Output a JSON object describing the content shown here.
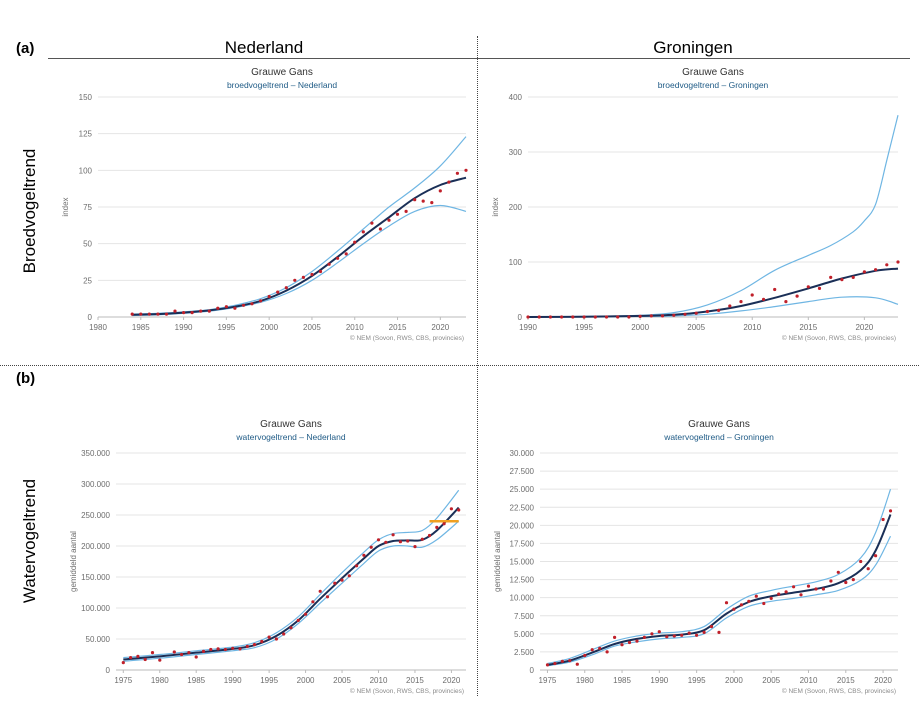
{
  "labels": {
    "a": "(a)",
    "b": "(b)",
    "col_left": "Nederland",
    "col_right": "Groningen",
    "row_top": "Broedvogeltrend",
    "row_bottom": "Watervogeltrend"
  },
  "colors": {
    "trend": "#1a2f57",
    "band": "#6fb6e3",
    "points": "#c0202a",
    "target": "#f0a020",
    "axis_text": "#6d6d6d",
    "subtitle": "#1f5b86"
  },
  "chart_data": [
    {
      "type": "line",
      "title": "Grauwe Gans",
      "subtitle": "broedvogeltrend – Nederland",
      "ylabel": "index",
      "xlabel": "",
      "copyright": "© NEM (Sovon, RWS, CBS, provincies)",
      "xlim": [
        1980,
        2023
      ],
      "ylim": [
        0,
        150
      ],
      "xticks": [
        1980,
        1985,
        1990,
        1995,
        2000,
        2005,
        2010,
        2015,
        2020
      ],
      "xtick_labels": [
        "1980",
        "1985",
        "1990",
        "1995",
        "2000",
        "2005",
        "2010",
        "2015",
        "2020"
      ],
      "yticks": [
        0,
        25,
        50,
        75,
        100,
        125,
        150
      ],
      "ytick_labels": [
        "0",
        "25",
        "50",
        "75",
        "100",
        "125",
        "150"
      ],
      "grid": true,
      "series": [
        {
          "role": "trend",
          "x": [
            1984,
            1987,
            1990,
            1993,
            1996,
            1999,
            2002,
            2005,
            2008,
            2011,
            2014,
            2017,
            2020,
            2023
          ],
          "y": [
            1.5,
            2,
            3,
            4.5,
            7,
            11,
            18,
            28,
            41,
            55,
            68,
            81,
            90,
            95
          ]
        },
        {
          "role": "upper",
          "x": [
            1984,
            1987,
            1990,
            1993,
            1996,
            1999,
            2002,
            2005,
            2008,
            2011,
            2014,
            2017,
            2020,
            2023
          ],
          "y": [
            2,
            2.5,
            3.5,
            5,
            8,
            12.5,
            20,
            31,
            45,
            60,
            75,
            88,
            103,
            123
          ]
        },
        {
          "role": "lower",
          "x": [
            1984,
            1987,
            1990,
            1993,
            1996,
            1999,
            2002,
            2005,
            2008,
            2011,
            2014,
            2017,
            2020,
            2023
          ],
          "y": [
            1,
            1.5,
            2.5,
            4,
            6.5,
            10,
            16,
            25,
            37,
            50,
            62,
            72,
            76,
            72
          ]
        },
        {
          "role": "observed",
          "x": [
            1984,
            1985,
            1986,
            1987,
            1988,
            1989,
            1990,
            1991,
            1992,
            1993,
            1994,
            1995,
            1996,
            1997,
            1998,
            1999,
            2000,
            2001,
            2002,
            2003,
            2004,
            2005,
            2006,
            2007,
            2008,
            2009,
            2010,
            2011,
            2012,
            2013,
            2014,
            2015,
            2016,
            2017,
            2018,
            2019,
            2020,
            2021,
            2022,
            2023
          ],
          "y": [
            2,
            2,
            2,
            2,
            2,
            4,
            3,
            3,
            4,
            4,
            6,
            7,
            6,
            8,
            9,
            11,
            14,
            17,
            20,
            25,
            27,
            29,
            31,
            36,
            40,
            43,
            51,
            58,
            64,
            60,
            66,
            70,
            72,
            80,
            79,
            78,
            86,
            92,
            98,
            100
          ]
        }
      ]
    },
    {
      "type": "line",
      "title": "Grauwe Gans",
      "subtitle": "broedvogeltrend – Groningen",
      "ylabel": "index",
      "xlabel": "",
      "copyright": "© NEM (Sovon, RWS, CBS, provincies)",
      "xlim": [
        1990,
        2023
      ],
      "ylim": [
        0,
        400
      ],
      "xticks": [
        1990,
        1995,
        2000,
        2005,
        2010,
        2015,
        2020
      ],
      "xtick_labels": [
        "1990",
        "1995",
        "2000",
        "2005",
        "2010",
        "2015",
        "2020"
      ],
      "yticks": [
        0,
        100,
        200,
        300,
        400
      ],
      "ytick_labels": [
        "0",
        "100",
        "200",
        "300",
        "400"
      ],
      "grid": true,
      "series": [
        {
          "role": "trend",
          "x": [
            1990,
            1995,
            2000,
            2003,
            2006,
            2009,
            2012,
            2015,
            2018,
            2021,
            2023
          ],
          "y": [
            0,
            0.5,
            2,
            4,
            10,
            20,
            35,
            52,
            70,
            84,
            88
          ]
        },
        {
          "role": "upper",
          "x": [
            1990,
            1995,
            2000,
            2003,
            2006,
            2009,
            2012,
            2015,
            2017,
            2019,
            2020,
            2021,
            2022,
            2023
          ],
          "y": [
            0,
            1,
            3,
            8,
            22,
            48,
            85,
            112,
            130,
            155,
            175,
            205,
            285,
            367
          ]
        },
        {
          "role": "lower",
          "x": [
            1990,
            1995,
            2000,
            2003,
            2006,
            2009,
            2012,
            2015,
            2018,
            2021,
            2023
          ],
          "y": [
            0,
            0.3,
            1,
            2,
            5,
            11,
            19,
            28,
            36,
            35,
            23
          ]
        },
        {
          "role": "observed",
          "x": [
            1990,
            1991,
            1992,
            1993,
            1994,
            1995,
            1996,
            1997,
            1998,
            1999,
            2000,
            2001,
            2002,
            2003,
            2004,
            2005,
            2006,
            2007,
            2008,
            2009,
            2010,
            2011,
            2012,
            2013,
            2014,
            2015,
            2016,
            2017,
            2018,
            2019,
            2020,
            2021,
            2022,
            2023
          ],
          "y": [
            0,
            0,
            0,
            0,
            0,
            0,
            0,
            0,
            0,
            0,
            1,
            2,
            2,
            3,
            5,
            7,
            10,
            12,
            20,
            28,
            40,
            32,
            50,
            28,
            38,
            55,
            52,
            72,
            68,
            72,
            82,
            86,
            95,
            100
          ]
        }
      ]
    },
    {
      "type": "line",
      "title": "Grauwe Gans",
      "subtitle": "watervogeltrend – Nederland",
      "ylabel": "gemiddeld aantal",
      "xlabel": "",
      "copyright": "© NEM (Sovon, RWS, CBS, provincies)",
      "xlim": [
        1974,
        2022
      ],
      "ylim": [
        0,
        350000
      ],
      "xticks": [
        1975,
        1980,
        1985,
        1990,
        1995,
        2000,
        2005,
        2010,
        2015,
        2020
      ],
      "xtick_labels": [
        "1975",
        "1980",
        "1985",
        "1990",
        "1995",
        "2000",
        "2005",
        "2010",
        "2015",
        "2020"
      ],
      "yticks": [
        0,
        50000,
        100000,
        150000,
        200000,
        250000,
        300000,
        350000
      ],
      "ytick_labels": [
        "0",
        "50.000",
        "100.000",
        "150.000",
        "200.000",
        "250.000",
        "300.000",
        "350.000"
      ],
      "grid": true,
      "target_line": {
        "x": [
          2017,
          2021
        ],
        "y": 240000
      },
      "series": [
        {
          "role": "trend",
          "x": [
            1975,
            1980,
            1985,
            1990,
            1993,
            1996,
            1999,
            2002,
            2005,
            2008,
            2010,
            2012,
            2014,
            2016,
            2018,
            2021
          ],
          "y": [
            17000,
            22000,
            28000,
            34000,
            40000,
            55000,
            80000,
            115000,
            148000,
            180000,
            200000,
            208000,
            209000,
            210000,
            225000,
            262000
          ]
        },
        {
          "role": "upper",
          "x": [
            1975,
            1980,
            1985,
            1990,
            1993,
            1996,
            1999,
            2002,
            2005,
            2008,
            2010,
            2012,
            2014,
            2016,
            2018,
            2021
          ],
          "y": [
            20000,
            25000,
            31000,
            37000,
            44000,
            60000,
            86000,
            122000,
            157000,
            190000,
            210000,
            220000,
            222000,
            225000,
            245000,
            290000
          ]
        },
        {
          "role": "lower",
          "x": [
            1975,
            1980,
            1985,
            1990,
            1993,
            1996,
            1999,
            2002,
            2005,
            2008,
            2010,
            2012,
            2014,
            2016,
            2018,
            2021
          ],
          "y": [
            14000,
            19000,
            25000,
            31000,
            36000,
            50000,
            75000,
            108000,
            140000,
            172000,
            192000,
            200000,
            200000,
            198000,
            210000,
            240000
          ]
        },
        {
          "role": "observed",
          "x": [
            1975,
            1976,
            1977,
            1978,
            1979,
            1980,
            1982,
            1983,
            1984,
            1985,
            1986,
            1987,
            1988,
            1989,
            1990,
            1991,
            1992,
            1993,
            1994,
            1995,
            1996,
            1997,
            1998,
            1999,
            2000,
            2001,
            2002,
            2003,
            2004,
            2005,
            2006,
            2007,
            2008,
            2009,
            2010,
            2011,
            2012,
            2013,
            2014,
            2015,
            2016,
            2017,
            2018,
            2019,
            2020,
            2021
          ],
          "y": [
            12000,
            20000,
            22000,
            17000,
            28000,
            16000,
            29000,
            25000,
            28000,
            21000,
            30000,
            33000,
            34000,
            33000,
            35000,
            34000,
            38000,
            41000,
            46000,
            53000,
            50000,
            58000,
            68000,
            80000,
            90000,
            110000,
            127000,
            118000,
            140000,
            145000,
            152000,
            168000,
            185000,
            198000,
            210000,
            206000,
            218000,
            207000,
            208000,
            199000,
            211000,
            217000,
            230000,
            236000,
            260000,
            258000
          ]
        }
      ]
    },
    {
      "type": "line",
      "title": "Grauwe Gans",
      "subtitle": "watervogeltrend – Groningen",
      "ylabel": "gemiddeld aantal",
      "xlabel": "",
      "copyright": "© NEM (Sovon, RWS, CBS, provincies)",
      "xlim": [
        1974,
        2022
      ],
      "ylim": [
        0,
        30000
      ],
      "xticks": [
        1975,
        1980,
        1985,
        1990,
        1995,
        2000,
        2005,
        2010,
        2015,
        2020
      ],
      "xtick_labels": [
        "1975",
        "1980",
        "1985",
        "1990",
        "1995",
        "2000",
        "2005",
        "2010",
        "2015",
        "2020"
      ],
      "yticks": [
        0,
        2500,
        5000,
        7500,
        10000,
        12500,
        15000,
        17500,
        20000,
        22500,
        25000,
        27500,
        30000
      ],
      "ytick_labels": [
        "0",
        "2.500",
        "5.000",
        "7.500",
        "10.000",
        "12.500",
        "15.000",
        "17.500",
        "20.000",
        "22.500",
        "25.000",
        "27.500",
        "30.000"
      ],
      "grid": true,
      "series": [
        {
          "role": "trend",
          "x": [
            1975,
            1978,
            1981,
            1984,
            1987,
            1990,
            1993,
            1996,
            1999,
            2002,
            2005,
            2008,
            2011,
            2014,
            2017,
            2019,
            2021
          ],
          "y": [
            700,
            1300,
            2400,
            3600,
            4300,
            4700,
            4900,
            5500,
            7800,
            9400,
            10200,
            10700,
            11200,
            12000,
            13800,
            16500,
            21500
          ]
        },
        {
          "role": "upper",
          "x": [
            1975,
            1978,
            1981,
            1984,
            1987,
            1990,
            1993,
            1996,
            1999,
            2002,
            2005,
            2008,
            2011,
            2014,
            2017,
            2019,
            2021
          ],
          "y": [
            900,
            1600,
            2800,
            4000,
            4700,
            5100,
            5300,
            6000,
            8400,
            10200,
            11000,
            11600,
            12200,
            13200,
            15500,
            19000,
            25000
          ]
        },
        {
          "role": "lower",
          "x": [
            1975,
            1978,
            1981,
            1984,
            1987,
            1990,
            1993,
            1996,
            1999,
            2002,
            2005,
            2008,
            2011,
            2014,
            2017,
            2019,
            2021
          ],
          "y": [
            600,
            1100,
            2100,
            3300,
            3900,
            4300,
            4500,
            5000,
            7200,
            8800,
            9500,
            9900,
            10400,
            11000,
            12400,
            14500,
            18500
          ]
        },
        {
          "role": "observed",
          "x": [
            1975,
            1976,
            1977,
            1978,
            1979,
            1980,
            1981,
            1982,
            1983,
            1984,
            1985,
            1986,
            1987,
            1988,
            1989,
            1990,
            1991,
            1992,
            1993,
            1994,
            1995,
            1996,
            1997,
            1998,
            1999,
            2000,
            2001,
            2002,
            2003,
            2004,
            2005,
            2006,
            2007,
            2008,
            2009,
            2010,
            2011,
            2012,
            2013,
            2014,
            2015,
            2016,
            2017,
            2018,
            2019,
            2020,
            2021
          ],
          "y": [
            700,
            900,
            1200,
            1300,
            800,
            2000,
            2800,
            3000,
            2500,
            4500,
            3500,
            3800,
            4000,
            4500,
            5000,
            5300,
            4600,
            4700,
            4800,
            5100,
            4800,
            5200,
            6000,
            5200,
            9300,
            8400,
            9000,
            9500,
            10200,
            9200,
            9900,
            10500,
            10800,
            11500,
            10400,
            11600,
            11200,
            11200,
            12300,
            13500,
            12100,
            12500,
            15000,
            14000,
            15800,
            20800,
            22000
          ]
        }
      ]
    }
  ]
}
